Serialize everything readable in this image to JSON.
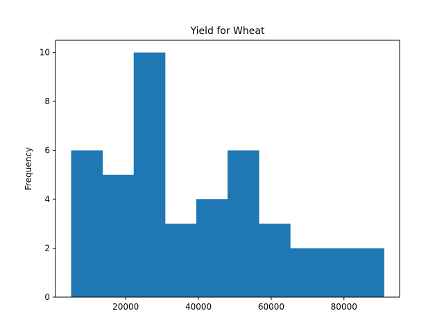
{
  "chart_data": {
    "type": "bar",
    "subtype": "histogram",
    "title": "Yield for Wheat",
    "xlabel": "",
    "ylabel": "Frequency",
    "bin_edges": [
      5000,
      13600,
      22200,
      30800,
      39400,
      48000,
      56600,
      65200,
      73800,
      82400,
      91000
    ],
    "values": [
      6,
      5,
      10,
      3,
      4,
      6,
      3,
      2,
      2,
      2
    ],
    "xlim": [
      700,
      95300
    ],
    "ylim": [
      0,
      10.5
    ],
    "xticks": [
      20000,
      40000,
      60000,
      80000
    ],
    "xtick_labels": [
      "20000",
      "40000",
      "60000",
      "80000"
    ],
    "yticks": [
      0,
      2,
      4,
      6,
      8,
      10
    ],
    "ytick_labels": [
      "0",
      "2",
      "4",
      "6",
      "8",
      "10"
    ],
    "bar_color": "#1f77b4",
    "grid": false,
    "legend": "none"
  }
}
